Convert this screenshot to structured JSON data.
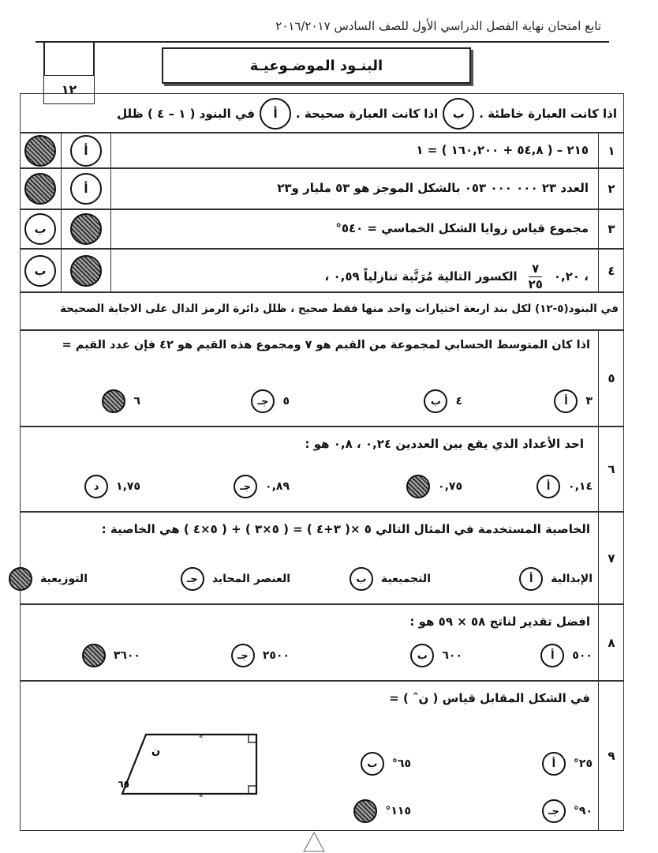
{
  "header": "تابع امتحان نهاية الفصل الدراسي الأول للصف السادس ٢٠١٦/٢٠١٧",
  "section_title": "البنـود الموضـوعيـة",
  "score": "١٢",
  "part1": {
    "instruction_prefix": "في البنود ( ١ – ٤ ) ظلل",
    "instruction_mid": "اذا كانت العبارة صحيحة .",
    "instruction_suffix": "اذا كانت العبارة خاطئة .",
    "letter_true": "أ",
    "letter_false": "ب",
    "items": [
      {
        "num": "١",
        "text": "٢١٥ – ( ٥٤,٨ + ١٦٠,٢٠٠ ) = ١",
        "answer": "ب"
      },
      {
        "num": "٢",
        "text": "العدد ٢٣ ٠٠٠ ٠٠٠ ٠٥٣ بالشكل الموجز هو ٥٣ مليار و٢٣",
        "answer": "ب"
      },
      {
        "num": "٣",
        "text": "مجموع قياس زوايا الشكل الخماسي = ٥٤٠°",
        "answer": "أ"
      },
      {
        "num": "٤",
        "text": "الكسور التالية مُرَتَّبة تنازلياً  ٠,٥٩  ،",
        "frac_num": "٧",
        "frac_den": "٢٥",
        "text_after": "،  ٠,٢٠",
        "answer": "أ"
      }
    ]
  },
  "part2": {
    "instruction": "في البنود(٥-١٢) لكل بند اربعة اختيارات واحد منها فقط صحيح ، ظلل دائرة الرمز الدال على الاجابة الصحيحة",
    "questions": [
      {
        "num": "٥",
        "text": "اذا كان المتوسط الحسابي لمجموعة من القيم هو ٧ ومجموع هذه القيم هو ٤٢ فإن عدد القيم =",
        "options": [
          {
            "letter": "أ",
            "value": "٣",
            "selected": false
          },
          {
            "letter": "ب",
            "value": "٤",
            "selected": false
          },
          {
            "letter": "جـ",
            "value": "٥",
            "selected": false
          },
          {
            "letter": "د",
            "value": "٦",
            "selected": true
          }
        ]
      },
      {
        "num": "٦",
        "text": "احد الأعداد الذي يقع بين العددين ٠,٢٤ ، ٠,٨ هو :",
        "options": [
          {
            "letter": "أ",
            "value": "٠,١٤",
            "selected": false
          },
          {
            "letter": "ب",
            "value": "٠,٧٥",
            "selected": true
          },
          {
            "letter": "جـ",
            "value": "٠,٨٩",
            "selected": false
          },
          {
            "letter": "د",
            "value": "١,٧٥",
            "selected": false
          }
        ]
      },
      {
        "num": "٧",
        "text": "الخاصية المستخدمة في المثال التالي  ٥ ×( ٣+٤ ) = ( ٥×٣ ) + ( ٥×٤ ) هي الخاصية :",
        "options": [
          {
            "letter": "أ",
            "value": "الإبدالية",
            "selected": false
          },
          {
            "letter": "ب",
            "value": "التجميعية",
            "selected": false
          },
          {
            "letter": "جـ",
            "value": "العنصر المحايد",
            "selected": false
          },
          {
            "letter": "د",
            "value": "التوزيعية",
            "selected": true
          }
        ]
      },
      {
        "num": "٨",
        "text": "افضل تقدير لناتج ٥٨ × ٥٩ هو :",
        "options": [
          {
            "letter": "أ",
            "value": "٥٠٠",
            "selected": false
          },
          {
            "letter": "ب",
            "value": "٦٠٠",
            "selected": false
          },
          {
            "letter": "جـ",
            "value": "٢٥٠٠",
            "selected": false
          },
          {
            "letter": "د",
            "value": "٣٦٠٠",
            "selected": true
          }
        ]
      },
      {
        "num": "٩",
        "text": "في الشكل المقابل قياس ( نˆ ) =",
        "options": [
          {
            "letter": "أ",
            "value": "٢٥°",
            "selected": false
          },
          {
            "letter": "ب",
            "value": "٦٥°",
            "selected": false
          },
          {
            "letter": "جـ",
            "value": "٩٠°",
            "selected": false
          },
          {
            "letter": "د",
            "value": "١١٥°",
            "selected": true
          }
        ],
        "figure": {
          "angle_label": "ن",
          "given_angle": "٦٥°"
        }
      }
    ]
  }
}
